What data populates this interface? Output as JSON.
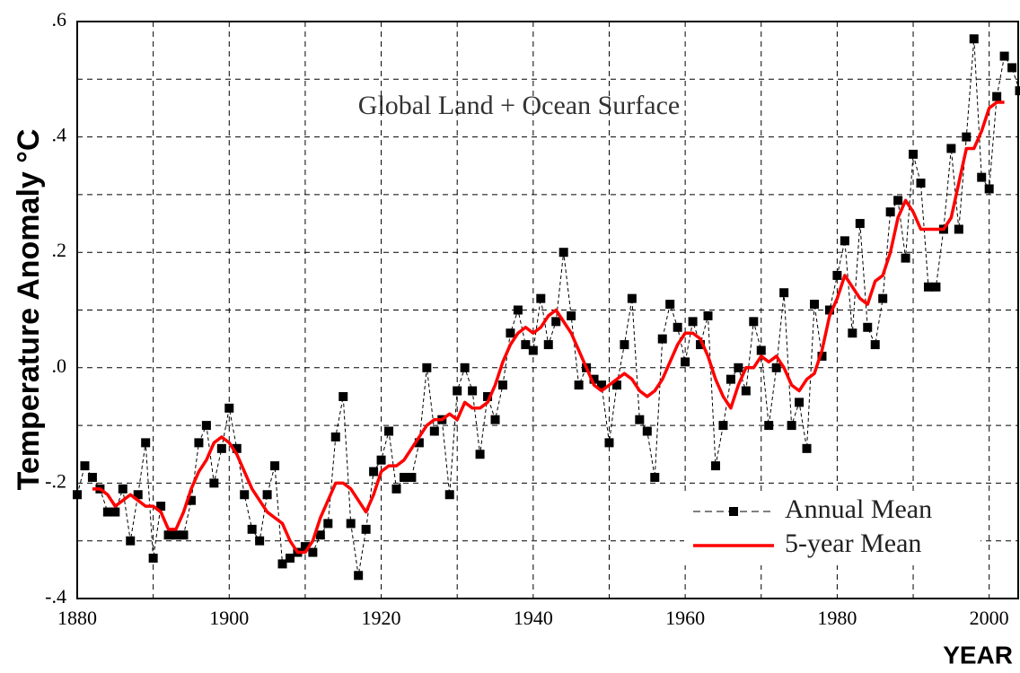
{
  "chart_data": {
    "type": "line",
    "annotation": "Global Land + Ocean Surface",
    "y_label": "Temperature Anomaly °C",
    "x_label": "YEAR",
    "xlim": [
      1880,
      2005
    ],
    "ylim": [
      -0.4,
      0.6
    ],
    "xticks": [
      1880,
      1900,
      1920,
      1940,
      1960,
      1980,
      2000
    ],
    "xminorticks": [
      1890,
      1910,
      1930,
      1950,
      1970,
      1990
    ],
    "yticks": [
      {
        "value": -0.4,
        "label": "-.4"
      },
      {
        "value": -0.2,
        "label": "-.2"
      },
      {
        "value": 0,
        "label": ".0"
      },
      {
        "value": 0.2,
        "label": ".2"
      },
      {
        "value": 0.4,
        "label": ".4"
      },
      {
        "value": 0.6,
        "label": ".6"
      }
    ],
    "yminorticks": [
      -0.3,
      -0.1,
      0.1,
      0.3,
      0.5
    ],
    "grid": true,
    "legend": "bottom-right",
    "series": [
      {
        "name": "Annual Mean",
        "color": "#000000",
        "style": "dashed",
        "marker": "square",
        "x": [
          1880,
          1881,
          1882,
          1883,
          1884,
          1885,
          1886,
          1887,
          1888,
          1889,
          1890,
          1891,
          1892,
          1893,
          1894,
          1895,
          1896,
          1897,
          1898,
          1899,
          1900,
          1901,
          1902,
          1903,
          1904,
          1905,
          1906,
          1907,
          1908,
          1909,
          1910,
          1911,
          1912,
          1913,
          1914,
          1915,
          1916,
          1917,
          1918,
          1919,
          1920,
          1921,
          1922,
          1923,
          1924,
          1925,
          1926,
          1927,
          1928,
          1929,
          1930,
          1931,
          1932,
          1933,
          1934,
          1935,
          1936,
          1937,
          1938,
          1939,
          1940,
          1941,
          1942,
          1943,
          1944,
          1945,
          1946,
          1947,
          1948,
          1949,
          1950,
          1951,
          1952,
          1953,
          1954,
          1955,
          1956,
          1957,
          1958,
          1959,
          1960,
          1961,
          1962,
          1963,
          1964,
          1965,
          1966,
          1967,
          1968,
          1969,
          1970,
          1971,
          1972,
          1973,
          1974,
          1975,
          1976,
          1977,
          1978,
          1979,
          1980,
          1981,
          1982,
          1983,
          1984,
          1985,
          1986,
          1987,
          1988,
          1989,
          1990,
          1991,
          1992,
          1993,
          1994,
          1995,
          1996,
          1997,
          1998,
          1999,
          2000,
          2001,
          2002,
          2003,
          2004
        ],
        "values": [
          -0.22,
          -0.17,
          -0.19,
          -0.21,
          -0.25,
          -0.25,
          -0.21,
          -0.3,
          -0.22,
          -0.13,
          -0.33,
          -0.24,
          -0.29,
          -0.29,
          -0.29,
          -0.23,
          -0.13,
          -0.1,
          -0.2,
          -0.14,
          -0.07,
          -0.14,
          -0.22,
          -0.28,
          -0.3,
          -0.22,
          -0.17,
          -0.34,
          -0.33,
          -0.32,
          -0.31,
          -0.32,
          -0.29,
          -0.27,
          -0.12,
          -0.05,
          -0.27,
          -0.36,
          -0.28,
          -0.18,
          -0.16,
          -0.11,
          -0.21,
          -0.19,
          -0.19,
          -0.13,
          0.0,
          -0.11,
          -0.09,
          -0.22,
          -0.04,
          0.0,
          -0.04,
          -0.15,
          -0.05,
          -0.09,
          -0.03,
          0.06,
          0.1,
          0.04,
          0.03,
          0.12,
          0.04,
          0.08,
          0.2,
          0.09,
          -0.03,
          0.0,
          -0.02,
          -0.03,
          -0.13,
          -0.03,
          0.04,
          0.12,
          -0.09,
          -0.11,
          -0.19,
          0.05,
          0.11,
          0.07,
          0.01,
          0.08,
          0.04,
          0.09,
          -0.17,
          -0.1,
          -0.02,
          0.0,
          -0.04,
          0.08,
          0.03,
          -0.1,
          0.0,
          0.13,
          -0.1,
          -0.06,
          -0.14,
          0.11,
          0.02,
          0.1,
          0.16,
          0.22,
          0.06,
          0.25,
          0.07,
          0.04,
          0.12,
          0.27,
          0.29,
          0.19,
          0.37,
          0.32,
          0.14,
          0.14,
          0.24,
          0.38,
          0.24,
          0.4,
          0.57,
          0.33,
          0.31,
          0.47,
          0.54,
          0.52,
          0.48
        ]
      },
      {
        "name": "5-year Mean",
        "color": "#ff0000",
        "style": "solid",
        "x": [
          1882,
          1883,
          1884,
          1885,
          1886,
          1887,
          1888,
          1889,
          1890,
          1891,
          1892,
          1893,
          1894,
          1895,
          1896,
          1897,
          1898,
          1899,
          1900,
          1901,
          1902,
          1903,
          1904,
          1905,
          1906,
          1907,
          1908,
          1909,
          1910,
          1911,
          1912,
          1913,
          1914,
          1915,
          1916,
          1917,
          1918,
          1919,
          1920,
          1921,
          1922,
          1923,
          1924,
          1925,
          1926,
          1927,
          1928,
          1929,
          1930,
          1931,
          1932,
          1933,
          1934,
          1935,
          1936,
          1937,
          1938,
          1939,
          1940,
          1941,
          1942,
          1943,
          1944,
          1945,
          1946,
          1947,
          1948,
          1949,
          1950,
          1951,
          1952,
          1953,
          1954,
          1955,
          1956,
          1957,
          1958,
          1959,
          1960,
          1961,
          1962,
          1963,
          1964,
          1965,
          1966,
          1967,
          1968,
          1969,
          1970,
          1971,
          1972,
          1973,
          1974,
          1975,
          1976,
          1977,
          1978,
          1979,
          1980,
          1981,
          1982,
          1983,
          1984,
          1985,
          1986,
          1987,
          1988,
          1989,
          1990,
          1991,
          1992,
          1993,
          1994,
          1995,
          1996,
          1997,
          1998,
          1999,
          2000,
          2001,
          2002
        ],
        "values": [
          -0.21,
          -0.21,
          -0.22,
          -0.24,
          -0.23,
          -0.22,
          -0.23,
          -0.24,
          -0.24,
          -0.25,
          -0.28,
          -0.28,
          -0.25,
          -0.21,
          -0.18,
          -0.16,
          -0.13,
          -0.12,
          -0.13,
          -0.15,
          -0.18,
          -0.21,
          -0.23,
          -0.25,
          -0.26,
          -0.27,
          -0.3,
          -0.32,
          -0.32,
          -0.3,
          -0.26,
          -0.23,
          -0.2,
          -0.2,
          -0.21,
          -0.23,
          -0.25,
          -0.22,
          -0.18,
          -0.17,
          -0.17,
          -0.16,
          -0.14,
          -0.12,
          -0.1,
          -0.09,
          -0.09,
          -0.08,
          -0.09,
          -0.06,
          -0.07,
          -0.07,
          -0.06,
          -0.03,
          0.01,
          0.04,
          0.06,
          0.07,
          0.06,
          0.07,
          0.09,
          0.1,
          0.08,
          0.06,
          0.03,
          0.0,
          -0.03,
          -0.04,
          -0.03,
          -0.02,
          -0.01,
          -0.02,
          -0.04,
          -0.05,
          -0.04,
          -0.02,
          0.01,
          0.04,
          0.06,
          0.06,
          0.05,
          0.02,
          -0.02,
          -0.05,
          -0.07,
          -0.03,
          0.0,
          0.0,
          0.02,
          0.01,
          0.02,
          0.0,
          -0.03,
          -0.04,
          -0.02,
          -0.01,
          0.03,
          0.09,
          0.12,
          0.16,
          0.14,
          0.12,
          0.11,
          0.15,
          0.16,
          0.2,
          0.26,
          0.29,
          0.27,
          0.24,
          0.24,
          0.24,
          0.24,
          0.26,
          0.32,
          0.38,
          0.38,
          0.41,
          0.45,
          0.46,
          0.46
        ]
      }
    ]
  }
}
